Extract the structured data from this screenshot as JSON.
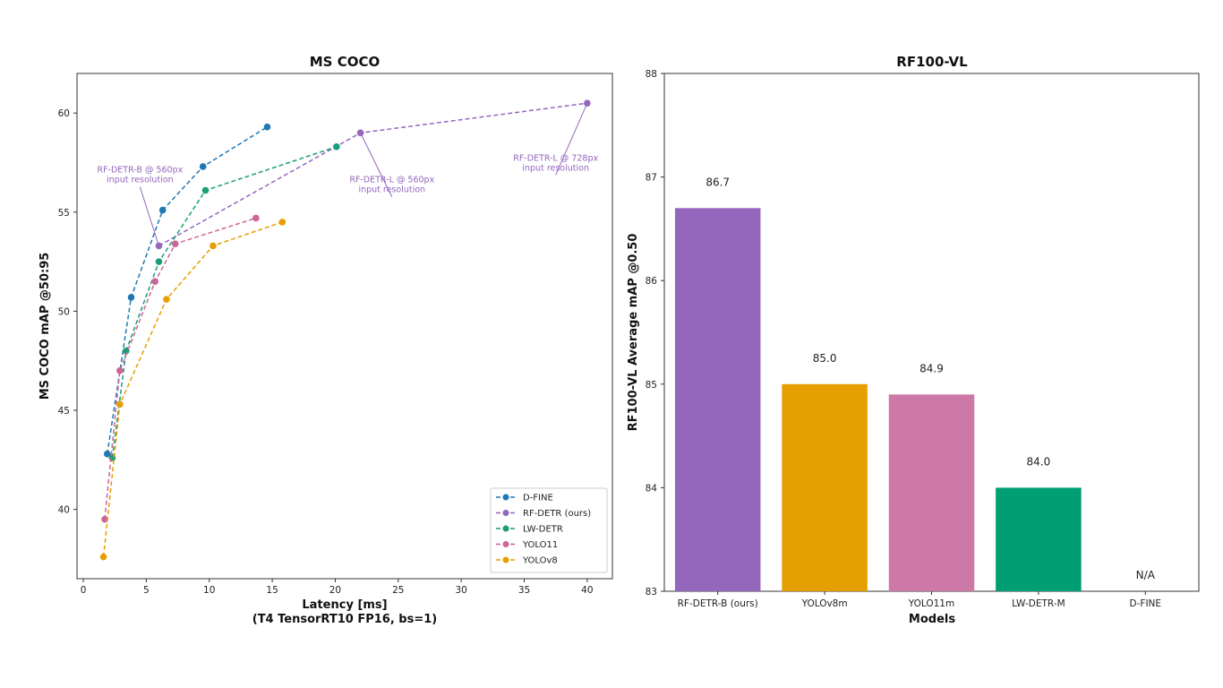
{
  "chart_data": [
    {
      "type": "line",
      "title": "MS COCO",
      "xlabel": "Latency [ms]",
      "xlabel2": "(T4 TensorRT10 FP16, bs=1)",
      "ylabel": "MS COCO mAP @50:95",
      "xlim": [
        -0.5,
        42
      ],
      "ylim": [
        36.5,
        62
      ],
      "xticks": [
        0,
        5,
        10,
        15,
        20,
        25,
        30,
        35,
        40
      ],
      "yticks": [
        40,
        45,
        50,
        55,
        60
      ],
      "grid": false,
      "legend_position": "bottom-right",
      "series": [
        {
          "name": "D-FINE",
          "color": "#1f77b4",
          "x": [
            1.9,
            3.8,
            6.3,
            9.5,
            14.6
          ],
          "y": [
            42.8,
            50.7,
            55.1,
            57.3,
            59.3
          ]
        },
        {
          "name": "RF-DETR (ours)",
          "color": "#9467bd",
          "x": [
            6.0,
            22.0,
            40.0
          ],
          "y": [
            53.3,
            59.0,
            60.5
          ]
        },
        {
          "name": "LW-DETR",
          "color": "#1a9e77",
          "x": [
            2.3,
            3.4,
            6.0,
            9.7,
            20.1
          ],
          "y": [
            42.6,
            48.0,
            52.5,
            56.1,
            58.3
          ]
        },
        {
          "name": "YOLO11",
          "color": "#cc6699",
          "x": [
            1.7,
            2.9,
            5.7,
            7.3,
            13.7
          ],
          "y": [
            39.5,
            47.0,
            51.5,
            53.4,
            54.7
          ]
        },
        {
          "name": "YOLOv8",
          "color": "#e69f00",
          "x": [
            1.6,
            2.9,
            6.6,
            10.3,
            15.8
          ],
          "y": [
            37.6,
            45.3,
            50.6,
            53.3,
            54.5
          ]
        }
      ],
      "annotations": [
        {
          "lines": [
            "RF-DETR-B @ 560px",
            "input resolution"
          ],
          "target_x": 6.0,
          "target_y": 53.3,
          "text_x": 4.5,
          "text_y": 57.0
        },
        {
          "lines": [
            "RF-DETR-L @ 560px",
            "input resolution"
          ],
          "target_x": 22.0,
          "target_y": 59.0,
          "text_x": 24.5,
          "text_y": 56.5
        },
        {
          "lines": [
            "RF-DETR-L @ 728px",
            "input resolution"
          ],
          "target_x": 40.0,
          "target_y": 60.5,
          "text_x": 37.5,
          "text_y": 57.6
        }
      ]
    },
    {
      "type": "bar",
      "title": "RF100-VL",
      "xlabel": "Models",
      "ylabel": "RF100-VL Average mAP @0.50",
      "ylim": [
        83,
        88
      ],
      "yticks": [
        83,
        84,
        85,
        86,
        87,
        88
      ],
      "grid": false,
      "categories": [
        "RF-DETR-B (ours)",
        "YOLOv8m",
        "YOLO11m",
        "LW-DETR-M",
        "D-FINE"
      ],
      "values": [
        86.7,
        85.0,
        84.9,
        84.0,
        null
      ],
      "labels": [
        "86.7",
        "85.0",
        "84.9",
        "84.0",
        "N/A"
      ],
      "colors": [
        "#9467bd",
        "#e69f00",
        "#cc79a7",
        "#009e73",
        "#ffffff"
      ]
    }
  ]
}
